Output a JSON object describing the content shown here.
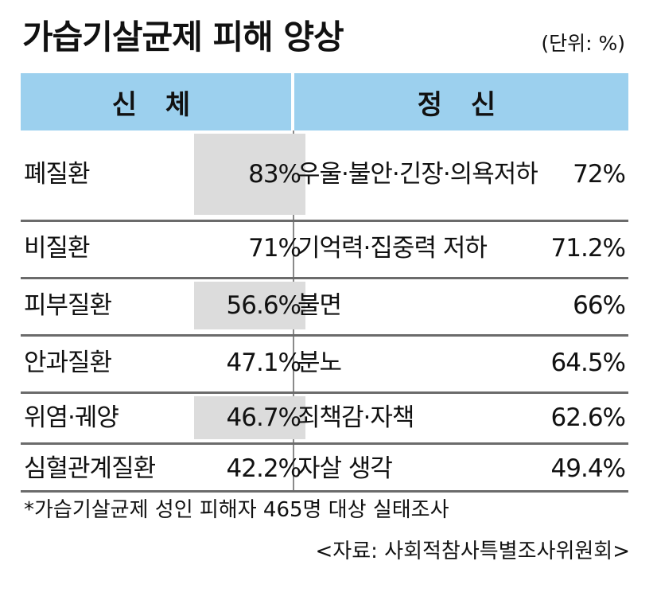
{
  "title": "가습기살균제 피해 양상",
  "unit_note": "(단위: %)",
  "headers": {
    "left": "신 체",
    "right": "정 신"
  },
  "rows": [
    {
      "left_label": "폐질환",
      "left_value": "83%",
      "right_label": "우울·불안·긴장·의욕저하",
      "right_value": "72%"
    },
    {
      "left_label": "비질환",
      "left_value": "71%",
      "right_label": "기억력·집중력 저하",
      "right_value": "71.2%"
    },
    {
      "left_label": "피부질환",
      "left_value": "56.6%",
      "right_label": "불면",
      "right_value": "66%"
    },
    {
      "left_label": "안과질환",
      "left_value": "47.1%",
      "right_label": "분노",
      "right_value": "64.5%"
    },
    {
      "left_label": "위염·궤양",
      "left_value": "46.7%",
      "right_label": "죄책감·자책",
      "right_value": "62.6%"
    },
    {
      "left_label": "심혈관계질환",
      "left_value": "42.2%",
      "right_label": "자살 생각",
      "right_value": "49.4%"
    }
  ],
  "footnote": "*가습기살균제 성인 피해자 465명 대상 실태조사",
  "source": "<자료: 사회적참사특별조사위원회>"
}
